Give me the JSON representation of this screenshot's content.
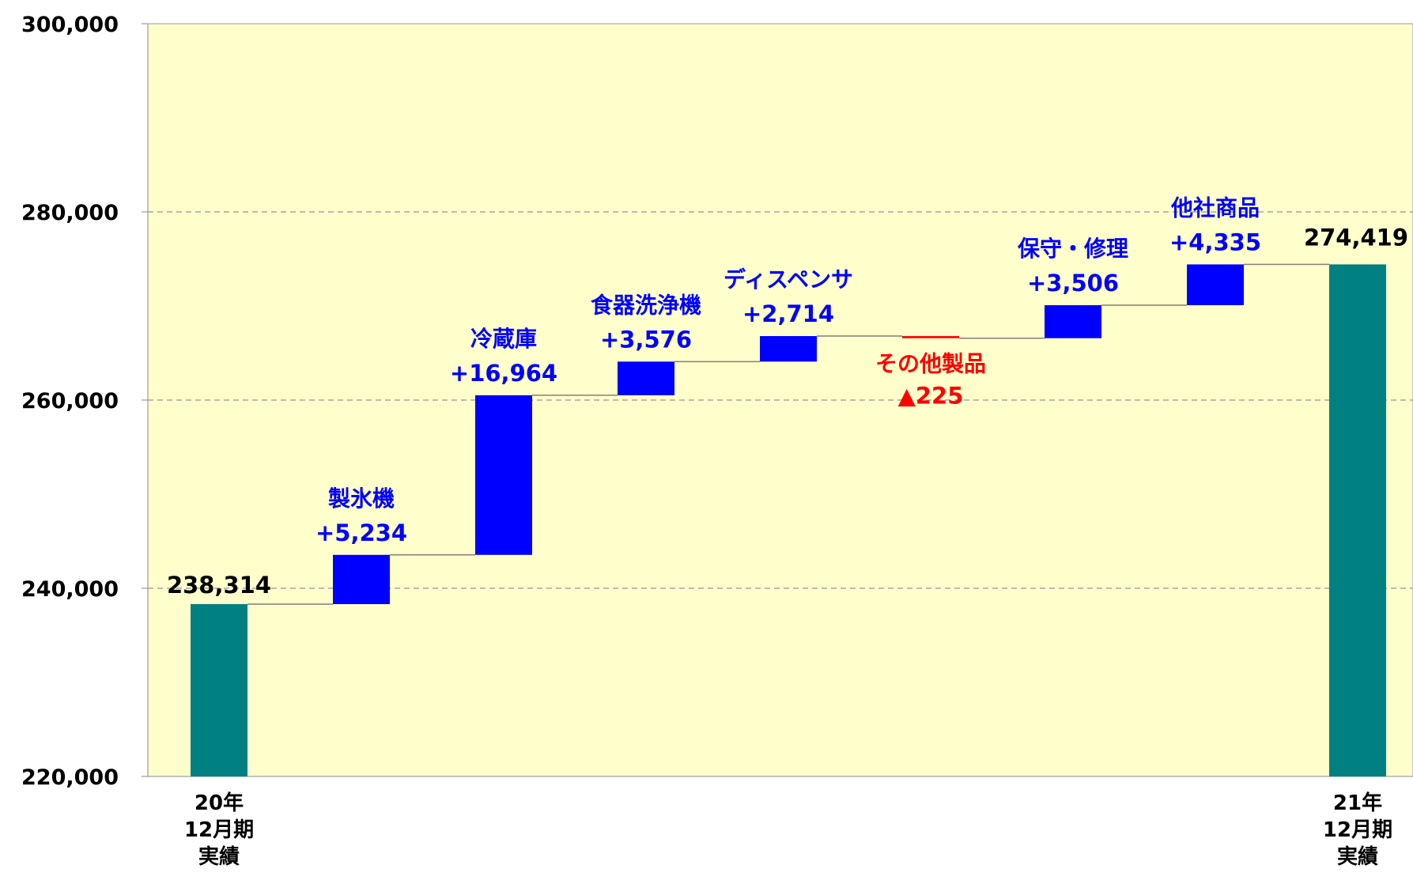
{
  "colors": {
    "plot_background": "#FFFFCC",
    "total_bar": "#008080",
    "increase_bar": "#0000FF",
    "decrease_bar": "#FF0000",
    "increase_text": "#0000FF",
    "decrease_text": "#FF0000",
    "total_text": "#000000"
  },
  "chart_data": {
    "type": "waterfall",
    "title": "",
    "xlabel": "",
    "ylabel": "",
    "ylim": [
      220000,
      300000
    ],
    "yticks": [
      220000,
      240000,
      260000,
      280000,
      300000
    ],
    "ytick_labels": [
      "220,000",
      "240,000",
      "260,000",
      "280,000",
      "300,000"
    ],
    "grid": "horizontal-dashed",
    "start": {
      "category_lines": [
        "20年",
        "12月期",
        "実績"
      ],
      "value": 238314,
      "value_label": "238,314"
    },
    "steps": [
      {
        "name": "製氷機",
        "delta": 5234,
        "delta_label": "+5,234"
      },
      {
        "name": "冷蔵庫",
        "delta": 16964,
        "delta_label": "+16,964"
      },
      {
        "name": "食器洗浄機",
        "delta": 3576,
        "delta_label": "+3,576"
      },
      {
        "name": "ディスペンサ",
        "delta": 2714,
        "delta_label": "+2,714"
      },
      {
        "name": "その他製品",
        "delta": -225,
        "delta_label": "▲225"
      },
      {
        "name": "保守・修理",
        "delta": 3506,
        "delta_label": "+3,506"
      },
      {
        "name": "他社商品",
        "delta": 4335,
        "delta_label": "+4,335"
      }
    ],
    "end": {
      "category_lines": [
        "21年",
        "12月期",
        "実績"
      ],
      "value": 274419,
      "value_label": "274,419"
    }
  }
}
